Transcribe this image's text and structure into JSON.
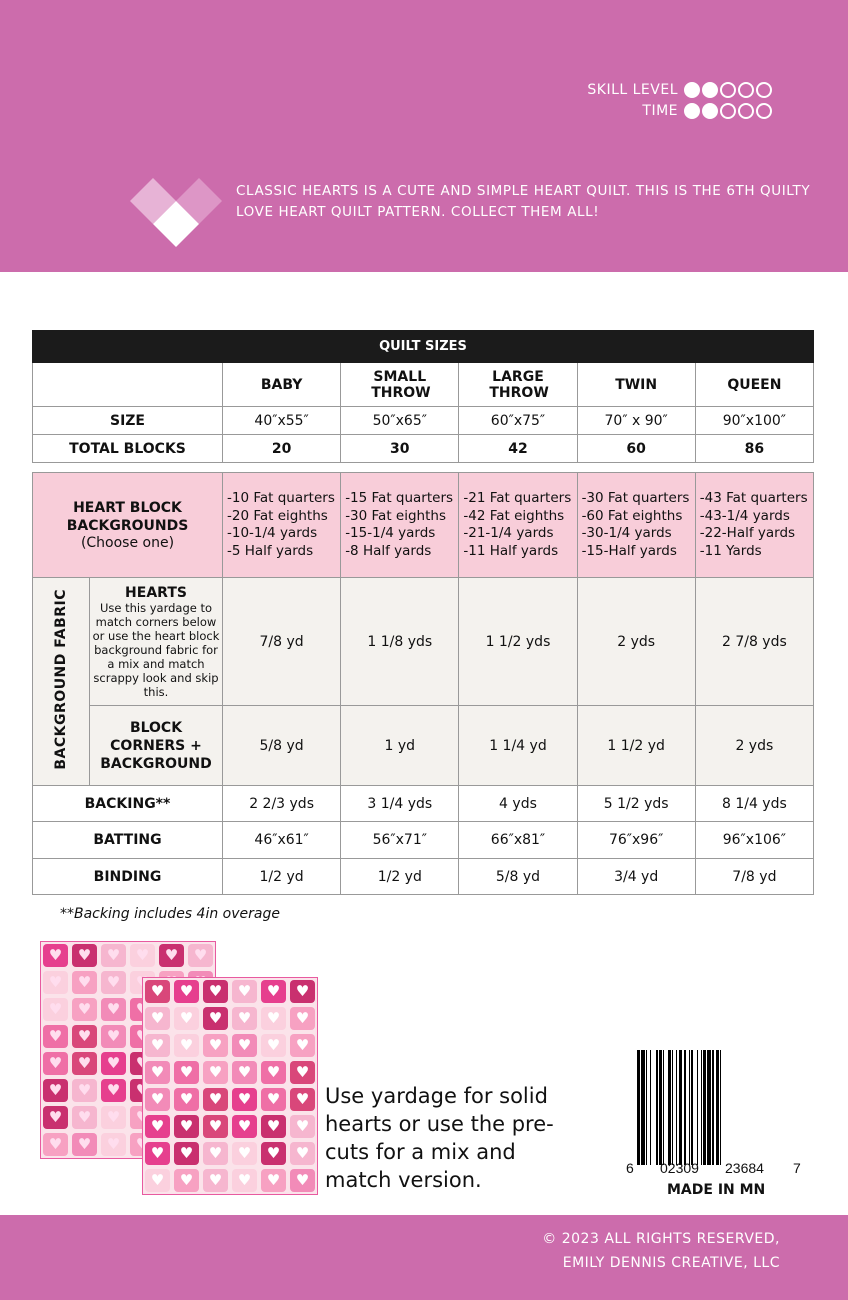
{
  "header": {
    "skill_label": "SKILL LEVEL",
    "skill_level": 2,
    "time_label": "TIME",
    "time_level": 2,
    "max_level": 5,
    "intro": "CLASSIC HEARTS IS A CUTE AND SIMPLE HEART QUILT.  THIS IS THE 6TH QUILTY LOVE HEART QUILT PATTERN.  COLLECT THEM ALL!",
    "bg_color": "#cc6cac"
  },
  "sizes": {
    "title": "QUILT SIZES",
    "columns": [
      "BABY",
      "SMALL THROW",
      "LARGE THROW",
      "TWIN",
      "QUEEN"
    ],
    "rows": [
      {
        "label": "SIZE",
        "values": [
          "40″x55″",
          "50″x65″",
          "60″x75″",
          "70″ x 90″",
          "90″x100″"
        ]
      },
      {
        "label": "TOTAL BLOCKS",
        "values": [
          "20",
          "30",
          "42",
          "60",
          "86"
        ]
      }
    ]
  },
  "fabric": {
    "heart_bg": {
      "label": "HEART BLOCK BACKGROUNDS",
      "sub": "(Choose one)",
      "values": [
        [
          "-10 Fat quarters",
          "-20 Fat eighths",
          "-10-1/4 yards",
          "-5 Half yards"
        ],
        [
          "-15 Fat quarters",
          "-30 Fat eighths",
          "-15-1/4 yards",
          "-8 Half yards"
        ],
        [
          "-21 Fat quarters",
          "-42 Fat eighths",
          "-21-1/4 yards",
          "-11 Half yards"
        ],
        [
          "-30 Fat quarters",
          "-60 Fat eighths",
          "-30-1/4 yards",
          "-15-Half yards"
        ],
        [
          "-43 Fat quarters",
          "-43-1/4 yards",
          "-22-Half yards",
          "-11 Yards"
        ]
      ]
    },
    "group_label": "BACKGROUND FABRIC",
    "hearts": {
      "label": "HEARTS",
      "desc": "Use this yardage to match corners below or use the heart block background fabric for a mix and match scrappy look and skip this.",
      "values": [
        "7/8 yd",
        "1 1/8 yds",
        "1 1/2 yds",
        "2 yds",
        "2 7/8 yds"
      ]
    },
    "corners": {
      "label": "BLOCK CORNERS + BACKGROUND",
      "values": [
        "5/8 yd",
        "1 yd",
        "1 1/4 yd",
        "1 1/2 yd",
        "2 yds"
      ]
    },
    "rows": [
      {
        "label": "BACKING**",
        "values": [
          "2 2/3 yds",
          "3 1/4 yds",
          "4 yds",
          "5 1/2 yds",
          "8 1/4 yds"
        ]
      },
      {
        "label": "BATTING",
        "values": [
          "46″x61″",
          "56″x71″",
          "66″x81″",
          "76″x96″",
          "96″x106″"
        ]
      },
      {
        "label": "BINDING",
        "values": [
          "1/2 yd",
          "1/2 yd",
          "5/8 yd",
          "3/4 yd",
          "7/8 yd"
        ]
      }
    ]
  },
  "note": "**Backing includes 4in overage",
  "caption": "Use yardage for solid hearts or use the pre-cuts for a mix and match version.",
  "barcode": {
    "first": "6",
    "left": "02309",
    "right": "23684",
    "check": "7"
  },
  "made_in": "MADE IN MN",
  "footer": {
    "line1": "© 2023 ALL RIGHTS RESERVED,",
    "line2": "EMILY DENNIS CREATIVE, LLC"
  }
}
